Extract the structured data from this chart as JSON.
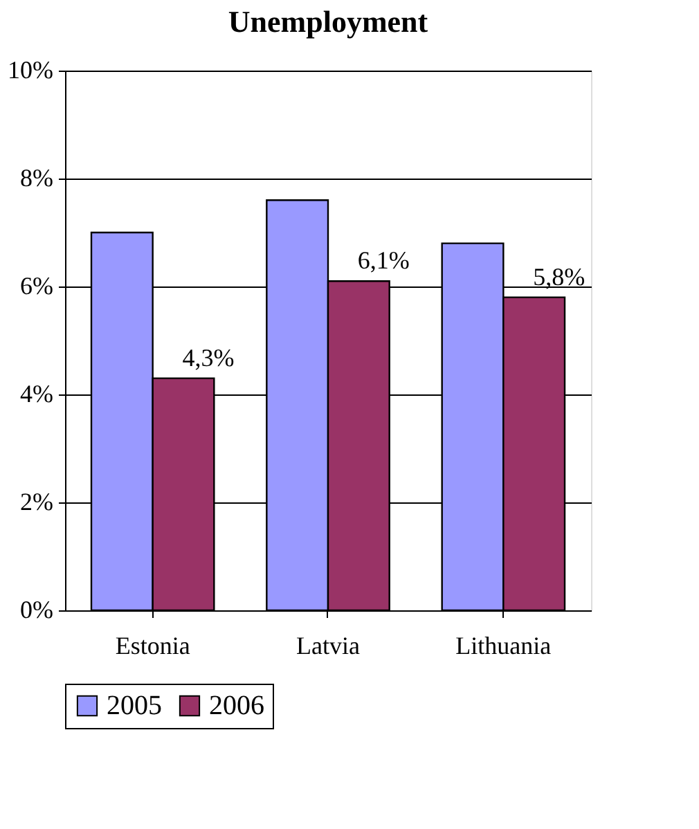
{
  "chart_data": {
    "type": "bar",
    "title": "Unemployment",
    "categories": [
      "Estonia",
      "Latvia",
      "Lithuania"
    ],
    "series": [
      {
        "name": "2005",
        "color": "#9999ff",
        "values": [
          7.0,
          7.6,
          6.8
        ]
      },
      {
        "name": "2006",
        "color": "#993366",
        "values": [
          4.3,
          6.1,
          5.8
        ],
        "value_labels": [
          "4,3%",
          "6,1%",
          "5,8%"
        ]
      }
    ],
    "ylim": [
      0,
      10
    ],
    "yticks": [
      {
        "value": 0,
        "label": "0%"
      },
      {
        "value": 2,
        "label": "2%"
      },
      {
        "value": 4,
        "label": "4%"
      },
      {
        "value": 6,
        "label": "6%"
      },
      {
        "value": 8,
        "label": "8%"
      },
      {
        "value": 10,
        "label": "10%"
      }
    ],
    "grid": "y",
    "legend": "bottom"
  }
}
